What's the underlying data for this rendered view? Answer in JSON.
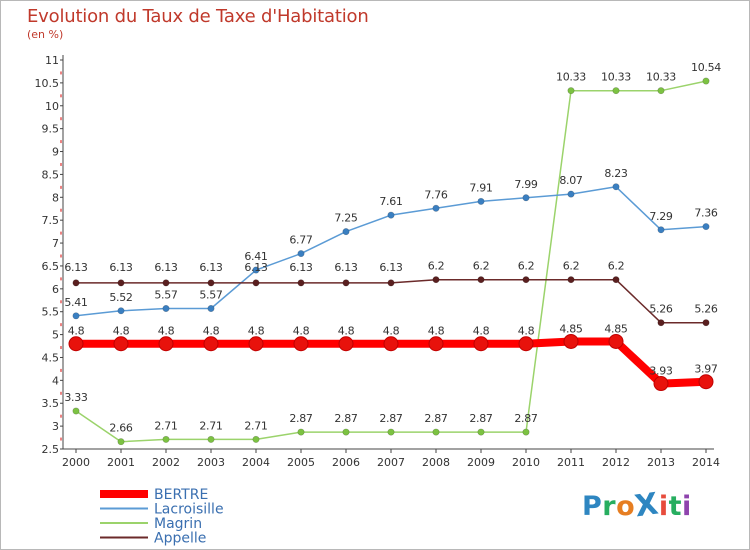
{
  "header": {
    "title": "Evolution du Taux de Taxe d'Habitation",
    "subtitle": "(en %)"
  },
  "logo": {
    "text": "ProXiti",
    "letters": [
      "P",
      "r",
      "o",
      "X",
      "i",
      "t",
      "i"
    ],
    "letter_colors": [
      "#2e86c1",
      "#27ae60",
      "#e67e22",
      "#2e86c1",
      "#e74c3c",
      "#27ae60",
      "#8e44ad"
    ]
  },
  "chart_data": {
    "type": "line",
    "title": "Evolution du Taux de Taxe d'Habitation",
    "subtitle": "(en %)",
    "xlabel": "",
    "ylabel": "",
    "x": [
      "2000",
      "2001",
      "2002",
      "2003",
      "2004",
      "2005",
      "2006",
      "2007",
      "2008",
      "2009",
      "2010",
      "2011",
      "2012",
      "2013",
      "2014"
    ],
    "ylim": [
      2.5,
      11
    ],
    "yticks": [
      "2.5",
      "3",
      "3.5",
      "4",
      "4.5",
      "5",
      "5.5",
      "6",
      "6.5",
      "7",
      "7.5",
      "8",
      "8.5",
      "9",
      "9.5",
      "10",
      "10.5",
      "11"
    ],
    "grid": false,
    "legend_position": "bottom-left",
    "series": [
      {
        "name": "BERTRE",
        "color": "#ff0000",
        "point_color": "#e8120c",
        "emphasis": true,
        "values": [
          4.8,
          4.8,
          4.8,
          4.8,
          4.8,
          4.8,
          4.8,
          4.8,
          4.8,
          4.8,
          4.8,
          4.85,
          4.85,
          3.93,
          3.97
        ],
        "labels": [
          "4.8",
          "4.8",
          "4.8",
          "4.8",
          "4.8",
          "4.8",
          "4.8",
          "4.8",
          "4.8",
          "4.8",
          "4.8",
          "4.85",
          "4.85",
          "3.93",
          "3.97"
        ]
      },
      {
        "name": "Lacroisille",
        "color": "#5b9bd5",
        "point_color": "#3a7fc1",
        "emphasis": false,
        "values": [
          5.41,
          5.52,
          5.57,
          5.57,
          6.41,
          6.77,
          7.25,
          7.61,
          7.76,
          7.91,
          7.99,
          8.07,
          8.23,
          7.29,
          7.36
        ],
        "labels": [
          "5.41",
          "5.52",
          "5.57",
          "5.57",
          "6.41",
          "6.77",
          "7.25",
          "7.61",
          "7.76",
          "7.91",
          "7.99",
          "8.07",
          "8.23",
          "7.29",
          "7.36"
        ]
      },
      {
        "name": "Magrin",
        "color": "#9bd36b",
        "point_color": "#7cc242",
        "emphasis": false,
        "values": [
          3.33,
          2.66,
          2.71,
          2.71,
          2.71,
          2.87,
          2.87,
          2.87,
          2.87,
          2.87,
          2.87,
          10.33,
          10.33,
          10.33,
          10.54
        ],
        "labels": [
          "3.33",
          "2.66",
          "2.71",
          "2.71",
          "2.71",
          "2.87",
          "2.87",
          "2.87",
          "2.87",
          "2.87",
          "2.87",
          "10.33",
          "10.33",
          "10.33",
          "10.54"
        ]
      },
      {
        "name": "Appelle",
        "color": "#6b2a2a",
        "point_color": "#5a1f1f",
        "emphasis": false,
        "values": [
          6.13,
          6.13,
          6.13,
          6.13,
          6.13,
          6.13,
          6.13,
          6.13,
          6.2,
          6.2,
          6.2,
          6.2,
          6.2,
          5.26,
          5.26
        ],
        "labels": [
          "6.13",
          "6.13",
          "6.13",
          "6.13",
          "6.13",
          "6.13",
          "6.13",
          "6.13",
          "6.2",
          "6.2",
          "6.2",
          "6.2",
          "6.2",
          "5.26",
          "5.26"
        ]
      }
    ],
    "axis_color": "#444444",
    "tick_mark_color": "#e03030",
    "label_color": "#333333"
  }
}
